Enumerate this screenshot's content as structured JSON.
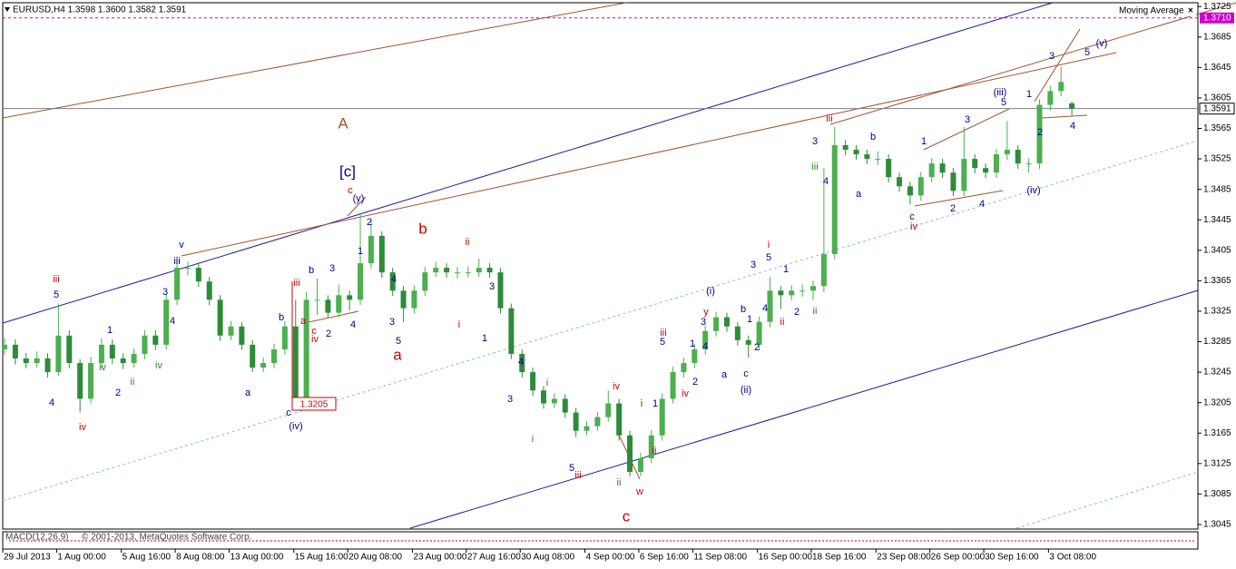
{
  "chart_data": {
    "type": "candlestick",
    "header": "EURUSD,H4  1.3598 1.3600 1.3582 1.3591",
    "indicator_legend": "Moving Average",
    "subwindow_label": "MACD(12,26,9)",
    "copyright": "© 2001-2013, MetaQuotes Software Corp.",
    "up_color": "#4caf50",
    "down_color": "#2e8b3a",
    "ylim": [
      1.3039,
      1.373
    ],
    "yticks": [
      1.3725,
      1.3685,
      1.3645,
      1.3605,
      1.3565,
      1.3525,
      1.3485,
      1.3445,
      1.3405,
      1.3365,
      1.3325,
      1.3285,
      1.3245,
      1.3205,
      1.3165,
      1.3125,
      1.3085,
      1.3045
    ],
    "xticks": [
      {
        "value": 0,
        "label": "29 Jul 2013"
      },
      {
        "value": 5,
        "label": "1 Aug 00:00"
      },
      {
        "value": 11,
        "label": "5 Aug 16:00"
      },
      {
        "value": 16,
        "label": "8 Aug 08:00"
      },
      {
        "value": 21,
        "label": "13 Aug 00:00"
      },
      {
        "value": 27,
        "label": "15 Aug 16:00"
      },
      {
        "value": 32,
        "label": "20 Aug 08:00"
      },
      {
        "value": 38,
        "label": "23 Aug 00:00"
      },
      {
        "value": 43,
        "label": "27 Aug 16:00"
      },
      {
        "value": 48,
        "label": "30 Aug 08:00"
      },
      {
        "value": 54,
        "label": "4 Sep 00:00"
      },
      {
        "value": 59,
        "label": "6 Sep 16:00"
      },
      {
        "value": 64,
        "label": "11 Sep 08:00"
      },
      {
        "value": 70,
        "label": "16 Sep 00:00"
      },
      {
        "value": 75,
        "label": "18 Sep 16:00"
      },
      {
        "value": 81,
        "label": "23 Sep 08:00"
      },
      {
        "value": 86,
        "label": "26 Sep 00:00"
      },
      {
        "value": 91,
        "label": "30 Sep 16:00"
      },
      {
        "value": 97,
        "label": "3 Oct 08:00"
      }
    ],
    "price_lines": [
      {
        "value": 1.3591,
        "label": "1.3591",
        "color": "#808080"
      },
      {
        "value": 1.371,
        "label": "1.3710",
        "color": "#cc00cc"
      }
    ],
    "candles": [
      [
        1.3275,
        1.329,
        1.3268,
        1.3281
      ],
      [
        1.3281,
        1.3288,
        1.3255,
        1.3263
      ],
      [
        1.3263,
        1.327,
        1.325,
        1.3257
      ],
      [
        1.3257,
        1.3272,
        1.3251,
        1.3263
      ],
      [
        1.3263,
        1.327,
        1.3238,
        1.3245
      ],
      [
        1.3245,
        1.3335,
        1.324,
        1.3293
      ],
      [
        1.3293,
        1.33,
        1.325,
        1.3257
      ],
      [
        1.3257,
        1.3262,
        1.3192,
        1.321
      ],
      [
        1.321,
        1.3265,
        1.3204,
        1.3257
      ],
      [
        1.3257,
        1.329,
        1.325,
        1.3281
      ],
      [
        1.3281,
        1.3288,
        1.3256,
        1.3263
      ],
      [
        1.3263,
        1.327,
        1.3249,
        1.3257
      ],
      [
        1.3257,
        1.3276,
        1.3251,
        1.3269
      ],
      [
        1.3269,
        1.33,
        1.3262,
        1.3293
      ],
      [
        1.3293,
        1.33,
        1.3274,
        1.3281
      ],
      [
        1.3281,
        1.3347,
        1.3275,
        1.334
      ],
      [
        1.334,
        1.3397,
        1.3333,
        1.3382
      ],
      [
        1.3382,
        1.339,
        1.3372,
        1.3382
      ],
      [
        1.3382,
        1.3388,
        1.3357,
        1.3364
      ],
      [
        1.3364,
        1.337,
        1.3333,
        1.334
      ],
      [
        1.334,
        1.3346,
        1.3286,
        1.3293
      ],
      [
        1.3293,
        1.3312,
        1.3287,
        1.3305
      ],
      [
        1.3305,
        1.3311,
        1.3274,
        1.3281
      ],
      [
        1.3281,
        1.3287,
        1.3245,
        1.3251
      ],
      [
        1.3251,
        1.3264,
        1.3245,
        1.3257
      ],
      [
        1.3257,
        1.3282,
        1.325,
        1.3275
      ],
      [
        1.3275,
        1.3312,
        1.3268,
        1.3305
      ],
      [
        1.3305,
        1.334,
        1.3205,
        1.321
      ],
      [
        1.321,
        1.335,
        1.3205,
        1.334
      ],
      [
        1.334,
        1.3368,
        1.332,
        1.334
      ],
      [
        1.334,
        1.3346,
        1.3316,
        1.3323
      ],
      [
        1.3323,
        1.336,
        1.3317,
        1.3346
      ],
      [
        1.3346,
        1.3352,
        1.3326,
        1.334
      ],
      [
        1.334,
        1.3454,
        1.3333,
        1.3388
      ],
      [
        1.3388,
        1.3445,
        1.3381,
        1.3424
      ],
      [
        1.3424,
        1.343,
        1.3369,
        1.3376
      ],
      [
        1.3376,
        1.3382,
        1.3345,
        1.3352
      ],
      [
        1.3352,
        1.3358,
        1.3311,
        1.3329
      ],
      [
        1.3329,
        1.3359,
        1.3322,
        1.3352
      ],
      [
        1.3352,
        1.3383,
        1.3345,
        1.3376
      ],
      [
        1.3376,
        1.339,
        1.337,
        1.3382
      ],
      [
        1.3382,
        1.3388,
        1.3369,
        1.3376
      ],
      [
        1.3376,
        1.3383,
        1.3368,
        1.3376
      ],
      [
        1.3376,
        1.3384,
        1.3369,
        1.3376
      ],
      [
        1.3376,
        1.3394,
        1.337,
        1.3382
      ],
      [
        1.3382,
        1.3388,
        1.3369,
        1.3376
      ],
      [
        1.3376,
        1.3382,
        1.3322,
        1.3329
      ],
      [
        1.3329,
        1.3335,
        1.3262,
        1.3269
      ],
      [
        1.3269,
        1.3275,
        1.3238,
        1.3245
      ],
      [
        1.3245,
        1.3251,
        1.3214,
        1.3221
      ],
      [
        1.3221,
        1.3227,
        1.3197,
        1.3204
      ],
      [
        1.3204,
        1.3217,
        1.3198,
        1.321
      ],
      [
        1.321,
        1.3216,
        1.3185,
        1.3192
      ],
      [
        1.3192,
        1.3198,
        1.316,
        1.3168
      ],
      [
        1.3168,
        1.3181,
        1.3162,
        1.3174
      ],
      [
        1.3174,
        1.3193,
        1.3168,
        1.3186
      ],
      [
        1.3186,
        1.3221,
        1.318,
        1.3204
      ],
      [
        1.3204,
        1.321,
        1.3155,
        1.3162
      ],
      [
        1.3162,
        1.3168,
        1.3108,
        1.3114
      ],
      [
        1.3114,
        1.3139,
        1.3108,
        1.3132
      ],
      [
        1.3132,
        1.3169,
        1.3126,
        1.3162
      ],
      [
        1.3162,
        1.3217,
        1.3155,
        1.321
      ],
      [
        1.321,
        1.3252,
        1.3204,
        1.3245
      ],
      [
        1.3245,
        1.3264,
        1.3238,
        1.3257
      ],
      [
        1.3257,
        1.3282,
        1.325,
        1.3275
      ],
      [
        1.3275,
        1.3306,
        1.3268,
        1.3299
      ],
      [
        1.3299,
        1.3324,
        1.3292,
        1.3317
      ],
      [
        1.3317,
        1.3323,
        1.3298,
        1.3305
      ],
      [
        1.3305,
        1.3311,
        1.328,
        1.3287
      ],
      [
        1.3287,
        1.3293,
        1.3264,
        1.3281
      ],
      [
        1.3281,
        1.3318,
        1.3274,
        1.3311
      ],
      [
        1.3311,
        1.337,
        1.3304,
        1.3352
      ],
      [
        1.3352,
        1.3358,
        1.3328,
        1.3346
      ],
      [
        1.3346,
        1.3359,
        1.3339,
        1.3352
      ],
      [
        1.3352,
        1.336,
        1.3344,
        1.3352
      ],
      [
        1.3352,
        1.3365,
        1.334,
        1.3358
      ],
      [
        1.3358,
        1.3513,
        1.335,
        1.34
      ],
      [
        1.34,
        1.3567,
        1.3393,
        1.3543
      ],
      [
        1.3543,
        1.355,
        1.353,
        1.3537
      ],
      [
        1.3537,
        1.3543,
        1.3524,
        1.3531
      ],
      [
        1.3531,
        1.3537,
        1.3518,
        1.3525
      ],
      [
        1.3525,
        1.3535,
        1.3517,
        1.3525
      ],
      [
        1.3525,
        1.3531,
        1.3494,
        1.3501
      ],
      [
        1.3501,
        1.3507,
        1.3482,
        1.3489
      ],
      [
        1.3489,
        1.3495,
        1.3465,
        1.3477
      ],
      [
        1.3477,
        1.3508,
        1.347,
        1.3501
      ],
      [
        1.3501,
        1.3526,
        1.3494,
        1.3519
      ],
      [
        1.3519,
        1.3525,
        1.35,
        1.3507
      ],
      [
        1.3507,
        1.3513,
        1.3476,
        1.3483
      ],
      [
        1.3483,
        1.3567,
        1.3476,
        1.3525
      ],
      [
        1.3525,
        1.3531,
        1.3506,
        1.3513
      ],
      [
        1.3513,
        1.3519,
        1.35,
        1.3507
      ],
      [
        1.3507,
        1.3538,
        1.35,
        1.3531
      ],
      [
        1.3531,
        1.3575,
        1.3524,
        1.3537
      ],
      [
        1.3537,
        1.3543,
        1.3512,
        1.3519
      ],
      [
        1.3519,
        1.3526,
        1.3507,
        1.3519
      ],
      [
        1.3519,
        1.3603,
        1.3512,
        1.3596
      ],
      [
        1.3596,
        1.3621,
        1.3589,
        1.3614
      ],
      [
        1.3614,
        1.3646,
        1.3607,
        1.3626
      ],
      [
        1.3598,
        1.36,
        1.3582,
        1.3591
      ]
    ],
    "price_box_label": "1.3205",
    "annotations": [
      "A",
      "[c]",
      "b",
      "a",
      "c",
      "(iv)",
      "c",
      "(i)",
      "(ii)",
      "(iii)",
      "(iv)",
      "(v)",
      "(y)",
      "c",
      "iii",
      "iv",
      "iii",
      "iv",
      "c",
      "a",
      "ii",
      "i",
      "iii",
      "iv",
      "i",
      "ii",
      "iii",
      "iv",
      "y",
      "w",
      "i",
      "ii",
      "iii",
      "iv",
      "5",
      "4",
      "1",
      "2",
      "3",
      "4",
      "v",
      "iii",
      "a",
      "b",
      "b",
      "3",
      "2",
      "1",
      "4",
      "3",
      "5",
      "4",
      "2",
      "3",
      "1",
      "4",
      "3",
      "5",
      "1",
      "5",
      "4",
      "1",
      "2",
      "3",
      "a",
      "b",
      "c",
      "2",
      "1",
      "3",
      "5",
      "4",
      "1",
      "2",
      "3",
      "4",
      "b",
      "a",
      "1",
      "c",
      "2",
      "3",
      "4",
      "5",
      "1",
      "2",
      "3",
      "4",
      "5",
      "iv",
      "ii",
      "iv",
      "i",
      "ii",
      "i",
      "iii",
      "ii"
    ]
  }
}
